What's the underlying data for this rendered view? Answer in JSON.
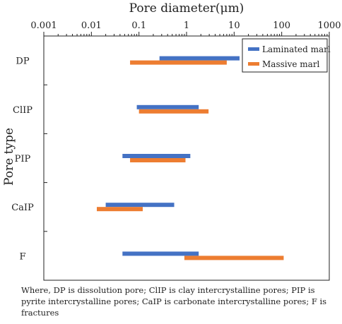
{
  "chart_data": {
    "type": "bar",
    "orientation": "horizontal-range",
    "x_scale": "log",
    "xlabel": "Pore diameter(μm)",
    "ylabel": "Pore type",
    "xlim": [
      0.001,
      1000
    ],
    "x_ticks": [
      "0.001",
      "0.01",
      "0.1",
      "1",
      "10",
      "100",
      "1000"
    ],
    "categories": [
      "DP",
      "ClIP",
      "PIP",
      "CaIP",
      "F"
    ],
    "legend_position": "top-right",
    "series": [
      {
        "name": "Laminated marl",
        "color": "#4472C4",
        "ranges": [
          [
            0.27,
            13
          ],
          [
            0.09,
            1.8
          ],
          [
            0.045,
            1.2
          ],
          [
            0.02,
            0.55
          ],
          [
            0.045,
            1.8
          ]
        ]
      },
      {
        "name": "Massive marl",
        "color": "#ED7D31",
        "ranges": [
          [
            0.065,
            7
          ],
          [
            0.1,
            2.9
          ],
          [
            0.065,
            0.95
          ],
          [
            0.013,
            0.12
          ],
          [
            0.9,
            110
          ]
        ]
      }
    ]
  },
  "caption": "Where, DP is dissolution pore; ClIP is clay intercrystalline pores; PIP is pyrite intercrystalline pores; CaIP is carbonate intercrystalline pores; F is fractures"
}
